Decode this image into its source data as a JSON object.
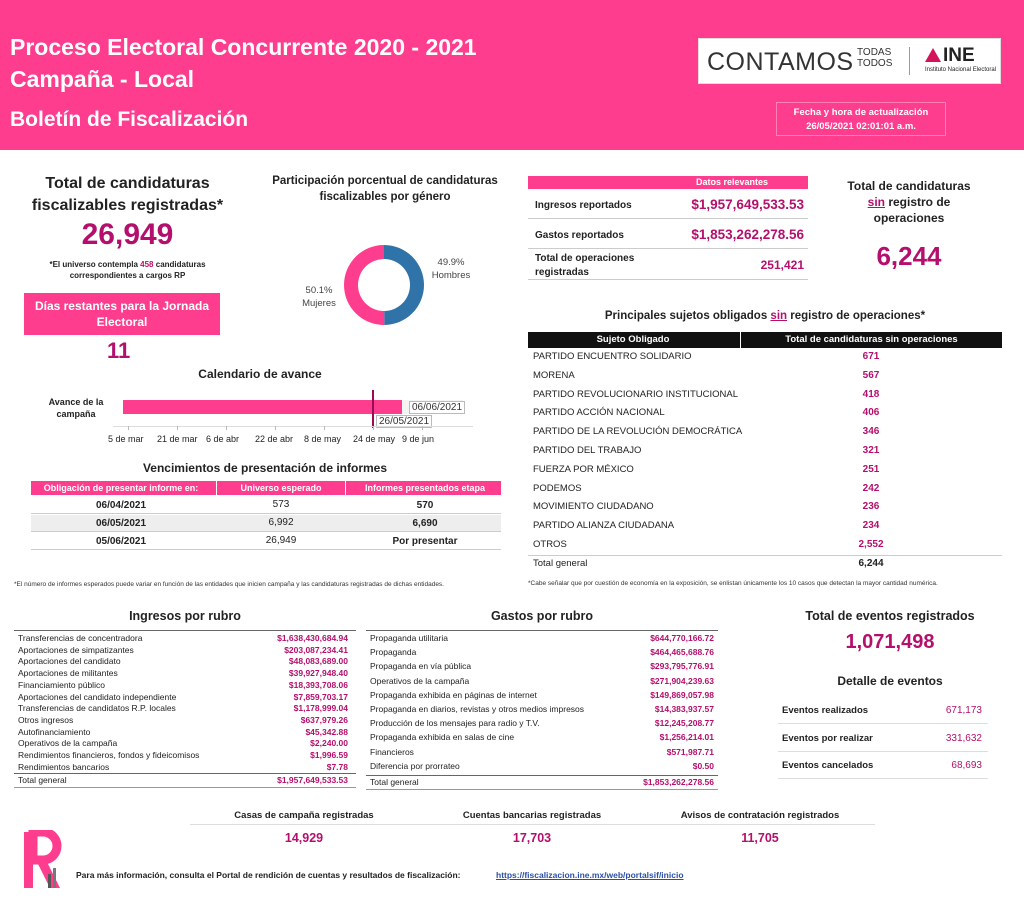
{
  "header": {
    "title_line1": "Proceso Electoral Concurrente 2020 - 2021",
    "title_line2": "Campaña - Local",
    "subtitle": "Boletín de Fiscalización",
    "update_label": "Fecha y hora de actualización",
    "update_value": "26/05/2021 02:01:01 a.m.",
    "logo_main": "CONTAMOS",
    "logo_side1": "TODAS",
    "logo_side2": "TODOS",
    "logo_ine": "INE",
    "logo_ine_sub": "Instituto Nacional Electoral",
    "brand_color": "#ff3d8e"
  },
  "total_candidaturas": {
    "title": "Total de candidaturas fiscalizables registradas*",
    "value": "26,949",
    "note_prefix": "*El universo contempla",
    "note_highlight": "458",
    "note_suffix": "candidaturas correspondientes a cargos RP"
  },
  "dias_restantes": {
    "label": "Días restantes para la Jornada Electoral",
    "value": "11"
  },
  "genero": {
    "title": "Participación porcentual de candidaturas fiscalizables por género",
    "slices": [
      {
        "label": "Hombres",
        "value": 49.9,
        "display": "49.9%",
        "color": "#2f73a8"
      },
      {
        "label": "Mujeres",
        "value": 50.1,
        "display": "50.1%",
        "color": "#ff3d8e"
      }
    ]
  },
  "datos_relevantes": {
    "header": "Datos relevantes",
    "rows": [
      {
        "label": "Ingresos reportados",
        "value": "$1,957,649,533.53"
      },
      {
        "label": "Gastos reportados",
        "value": "$1,853,262,278.56"
      },
      {
        "label": "Total de operaciones registradas",
        "value": "251,421"
      }
    ]
  },
  "sin_registro": {
    "title_a": "Total de candidaturas",
    "title_highlight": "sin",
    "title_b": "registro de operaciones",
    "value": "6,244"
  },
  "calendario": {
    "title": "Calendario de avance",
    "row_label": "Avance de la campaña",
    "ticks": [
      "5 de mar",
      "21 de mar",
      "6 de abr",
      "22 de abr",
      "8 de may",
      "24 de may",
      "9 de jun"
    ],
    "end_label": "06/06/2021",
    "current_label": "26/05/2021",
    "progress": 0.82
  },
  "vencimientos": {
    "title": "Vencimientos de presentación de informes",
    "headers": [
      "Obligación de presentar informe en:",
      "Universo esperado",
      "Informes presentados etapa normal"
    ],
    "rows": [
      [
        "06/04/2021",
        "573",
        "570"
      ],
      [
        "06/05/2021",
        "6,992",
        "6,690"
      ],
      [
        "05/06/2021",
        "26,949",
        "Por presentar"
      ]
    ],
    "footnote": "*El número de informes esperados puede variar en función de las entidades que inicien campaña y las candidaturas registradas de dichas entidades."
  },
  "sujetos": {
    "title_a": "Principales sujetos obligados",
    "title_highlight": "sin",
    "title_b": "registro de operaciones*",
    "headers": [
      "Sujeto Obligado",
      "Total de candidaturas sin operaciones"
    ],
    "rows": [
      [
        "PARTIDO ENCUENTRO SOLIDARIO",
        "671"
      ],
      [
        "MORENA",
        "567"
      ],
      [
        "PARTIDO REVOLUCIONARIO INSTITUCIONAL",
        "418"
      ],
      [
        "PARTIDO ACCIÓN NACIONAL",
        "406"
      ],
      [
        "PARTIDO DE LA REVOLUCIÓN DEMOCRÁTICA",
        "346"
      ],
      [
        "PARTIDO DEL TRABAJO",
        "321"
      ],
      [
        "FUERZA POR MÉXICO",
        "251"
      ],
      [
        "PODEMOS",
        "242"
      ],
      [
        "MOVIMIENTO CIUDADANO",
        "236"
      ],
      [
        "PARTIDO ALIANZA CIUDADANA",
        "234"
      ],
      [
        "OTROS",
        "2,552"
      ]
    ],
    "total_label": "Total general",
    "total_value": "6,244",
    "footnote": "*Cabe señalar que por cuestión de economía en la exposición, se enlistan únicamente los 10 casos que detectan la mayor cantidad numérica."
  },
  "ingresos": {
    "title": "Ingresos por rubro",
    "rows": [
      [
        "Transferencias de concentradora",
        "$1,638,430,684.94"
      ],
      [
        "Aportaciones de simpatizantes",
        "$203,087,234.41"
      ],
      [
        "Aportaciones del candidato",
        "$48,083,689.00"
      ],
      [
        "Aportaciones de militantes",
        "$39,927,948.40"
      ],
      [
        "Financiamiento público",
        "$18,393,708.06"
      ],
      [
        "Aportaciones del candidato independiente",
        "$7,859,703.17"
      ],
      [
        "Transferencias de candidatos R.P. locales",
        "$1,178,999.04"
      ],
      [
        "Otros ingresos",
        "$637,979.26"
      ],
      [
        "Autofinanciamiento",
        "$45,342.88"
      ],
      [
        "Operativos de la campaña",
        "$2,240.00"
      ],
      [
        "Rendimientos financieros, fondos y fideicomisos",
        "$1,996.59"
      ],
      [
        "Rendimientos bancarios",
        "$7.78"
      ]
    ],
    "total_label": "Total general",
    "total_value": "$1,957,649,533.53"
  },
  "gastos": {
    "title": "Gastos por rubro",
    "rows": [
      [
        "Propaganda utilitaria",
        "$644,770,166.72"
      ],
      [
        "Propaganda",
        "$464,465,688.76"
      ],
      [
        "Propaganda en vía pública",
        "$293,795,776.91"
      ],
      [
        "Operativos de la campaña",
        "$271,904,239.63"
      ],
      [
        "Propaganda exhibida en páginas de internet",
        "$149,869,057.98"
      ],
      [
        "Propaganda en diarios, revistas y otros medios impresos",
        "$14,383,937.57"
      ],
      [
        "Producción de los mensajes para radio y T.V.",
        "$12,245,208.77"
      ],
      [
        "Propaganda exhibida en salas de cine",
        "$1,256,214.01"
      ],
      [
        "Financieros",
        "$571,987.71"
      ],
      [
        "Diferencia por prorrateo",
        "$0.50"
      ]
    ],
    "total_label": "Total general",
    "total_value": "$1,853,262,278.56"
  },
  "eventos": {
    "title": "Total de eventos registrados",
    "value": "1,071,498",
    "detail_title": "Detalle de eventos",
    "rows": [
      [
        "Eventos realizados",
        "671,173"
      ],
      [
        "Eventos por realizar",
        "331,632"
      ],
      [
        "Eventos cancelados",
        "68,693"
      ]
    ]
  },
  "registros": [
    {
      "label": "Casas de campaña registradas",
      "value": "14,929"
    },
    {
      "label": "Cuentas bancarias registradas",
      "value": "17,703"
    },
    {
      "label": "Avisos de contratación registrados",
      "value": "11,705"
    }
  ],
  "footer": {
    "text": "Para más información, consulta el Portal de rendición de cuentas y resultados de fiscalización:",
    "link": "https://fiscalizacion.ine.mx/web/portalsif/inicio"
  }
}
